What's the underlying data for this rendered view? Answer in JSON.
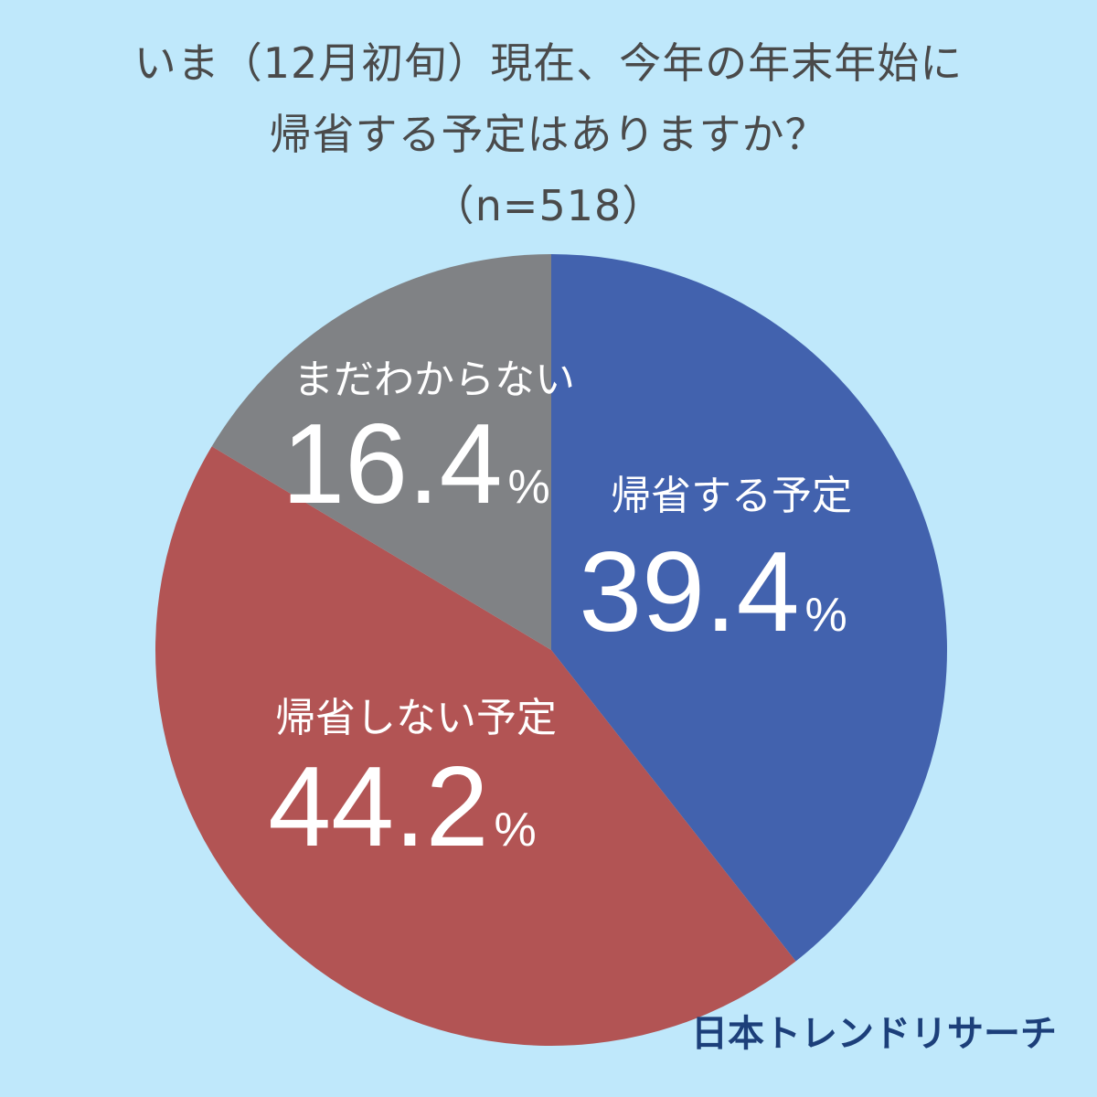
{
  "title": {
    "line1": "いま（12月初旬）現在、今年の年末年始に",
    "line2": "帰省する予定はありますか？",
    "line3": "（n=518）"
  },
  "chart_data": {
    "type": "pie",
    "start": "12 o'clock, clockwise",
    "unit": "%",
    "slices": [
      {
        "label": "帰省する予定",
        "value": 39.4,
        "value_text": "39.4",
        "color": "#4262ae"
      },
      {
        "label": "帰省しない予定",
        "value": 44.2,
        "value_text": "44.2",
        "color": "#b25454"
      },
      {
        "label": "まだわからない",
        "value": 16.4,
        "value_text": "16.4",
        "color": "#808285"
      }
    ]
  },
  "brand": "日本トレンドリサーチ"
}
